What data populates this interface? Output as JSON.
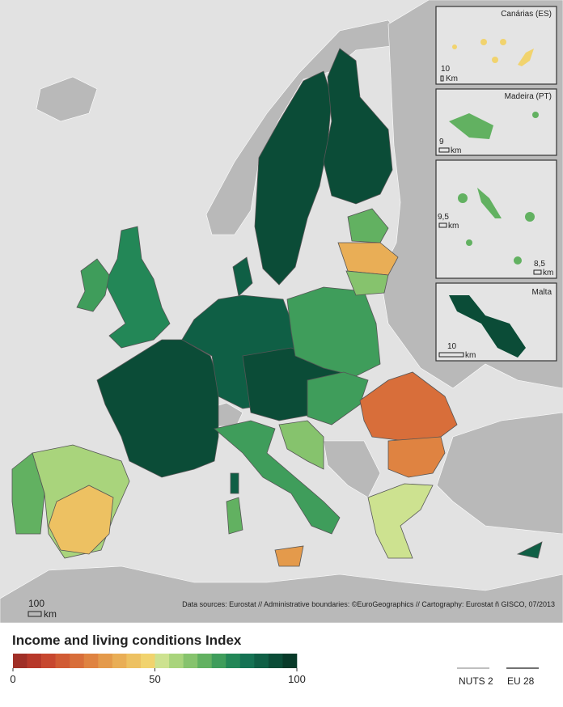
{
  "legend": {
    "title": "Income and living conditions Index",
    "colors": [
      "#a02f27",
      "#b7382a",
      "#c7472f",
      "#d15b34",
      "#d86e3a",
      "#df8341",
      "#e49a4b",
      "#e9ae56",
      "#edc162",
      "#f1d36e",
      "#cde290",
      "#a9d47c",
      "#86c36d",
      "#62b161",
      "#3f9d5b",
      "#238757",
      "#157253",
      "#0f5f45",
      "#0b4c37",
      "#083a29"
    ],
    "ticks": [
      0,
      50,
      100
    ]
  },
  "insets": [
    {
      "title": "Canárias (ES)",
      "scales": [
        {
          "value": "10",
          "unit": "Km"
        }
      ]
    },
    {
      "title": "Madeira (PT)",
      "scales": [
        {
          "value": "9",
          "unit": "km"
        }
      ]
    },
    {
      "scales": [
        {
          "value": "9,5",
          "unit": "km"
        },
        {
          "value": "8,5",
          "unit": "km"
        }
      ]
    },
    {
      "title": "Malta",
      "scales": [
        {
          "value": "10",
          "unit": "km"
        }
      ]
    }
  ],
  "map_scale": {
    "value": "100",
    "unit": "km"
  },
  "source": "Data sources: Eurostat // Administrative boundaries: ©EuroGeographics  // Cartography: Eurostat ñ GISCO, 07/2013",
  "boundary_legend": [
    "NUTS 2",
    "EU 28"
  ]
}
